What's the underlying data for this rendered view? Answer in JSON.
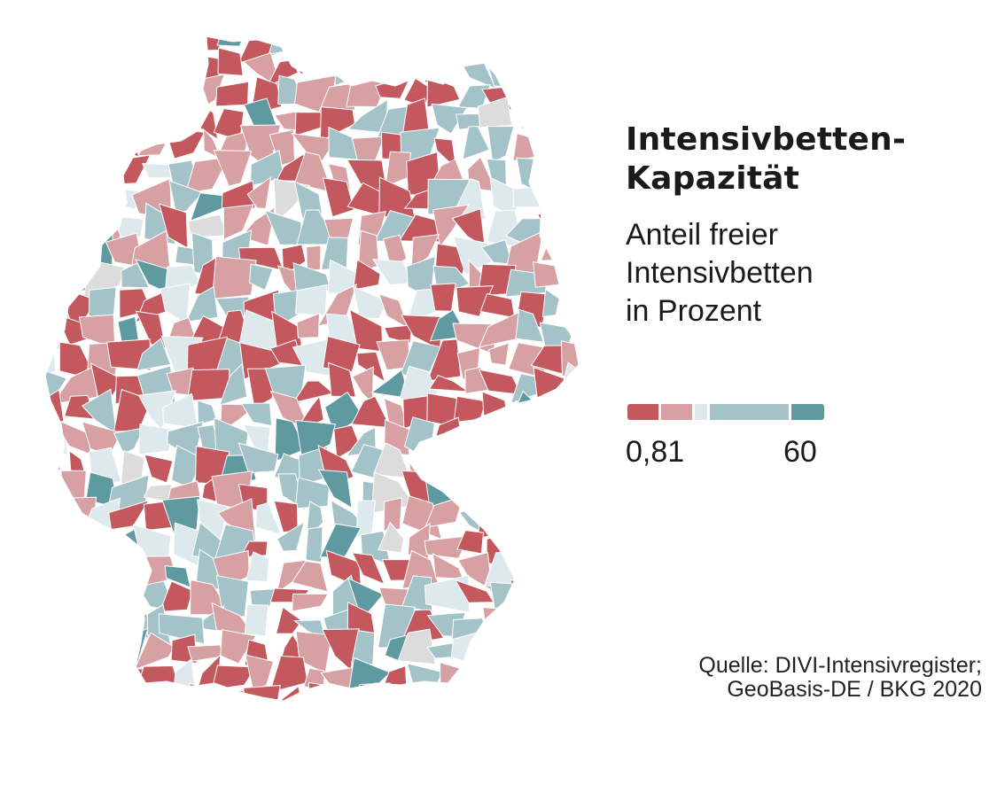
{
  "title": {
    "line1": "Intensivbetten-",
    "line2": "Kapazität"
  },
  "subtitle": {
    "line1": "Anteil freier",
    "line2": "Intensivbetten",
    "line3": "in Prozent"
  },
  "legend": {
    "min_label": "0,81",
    "max_label": "60",
    "colors": [
      "#c4585f",
      "#d7a0a2",
      "#dde9ec",
      "#a3c3c8",
      "#5f9aa1"
    ],
    "nodata_color": "#dcdcdc"
  },
  "source": {
    "line1": "Quelle: DIVI-Intensivregister;",
    "line2": "GeoBasis-DE / BKG 2020"
  },
  "map": {
    "country": "Germany",
    "level": "Landkreise",
    "border_color": "#ffffff"
  }
}
